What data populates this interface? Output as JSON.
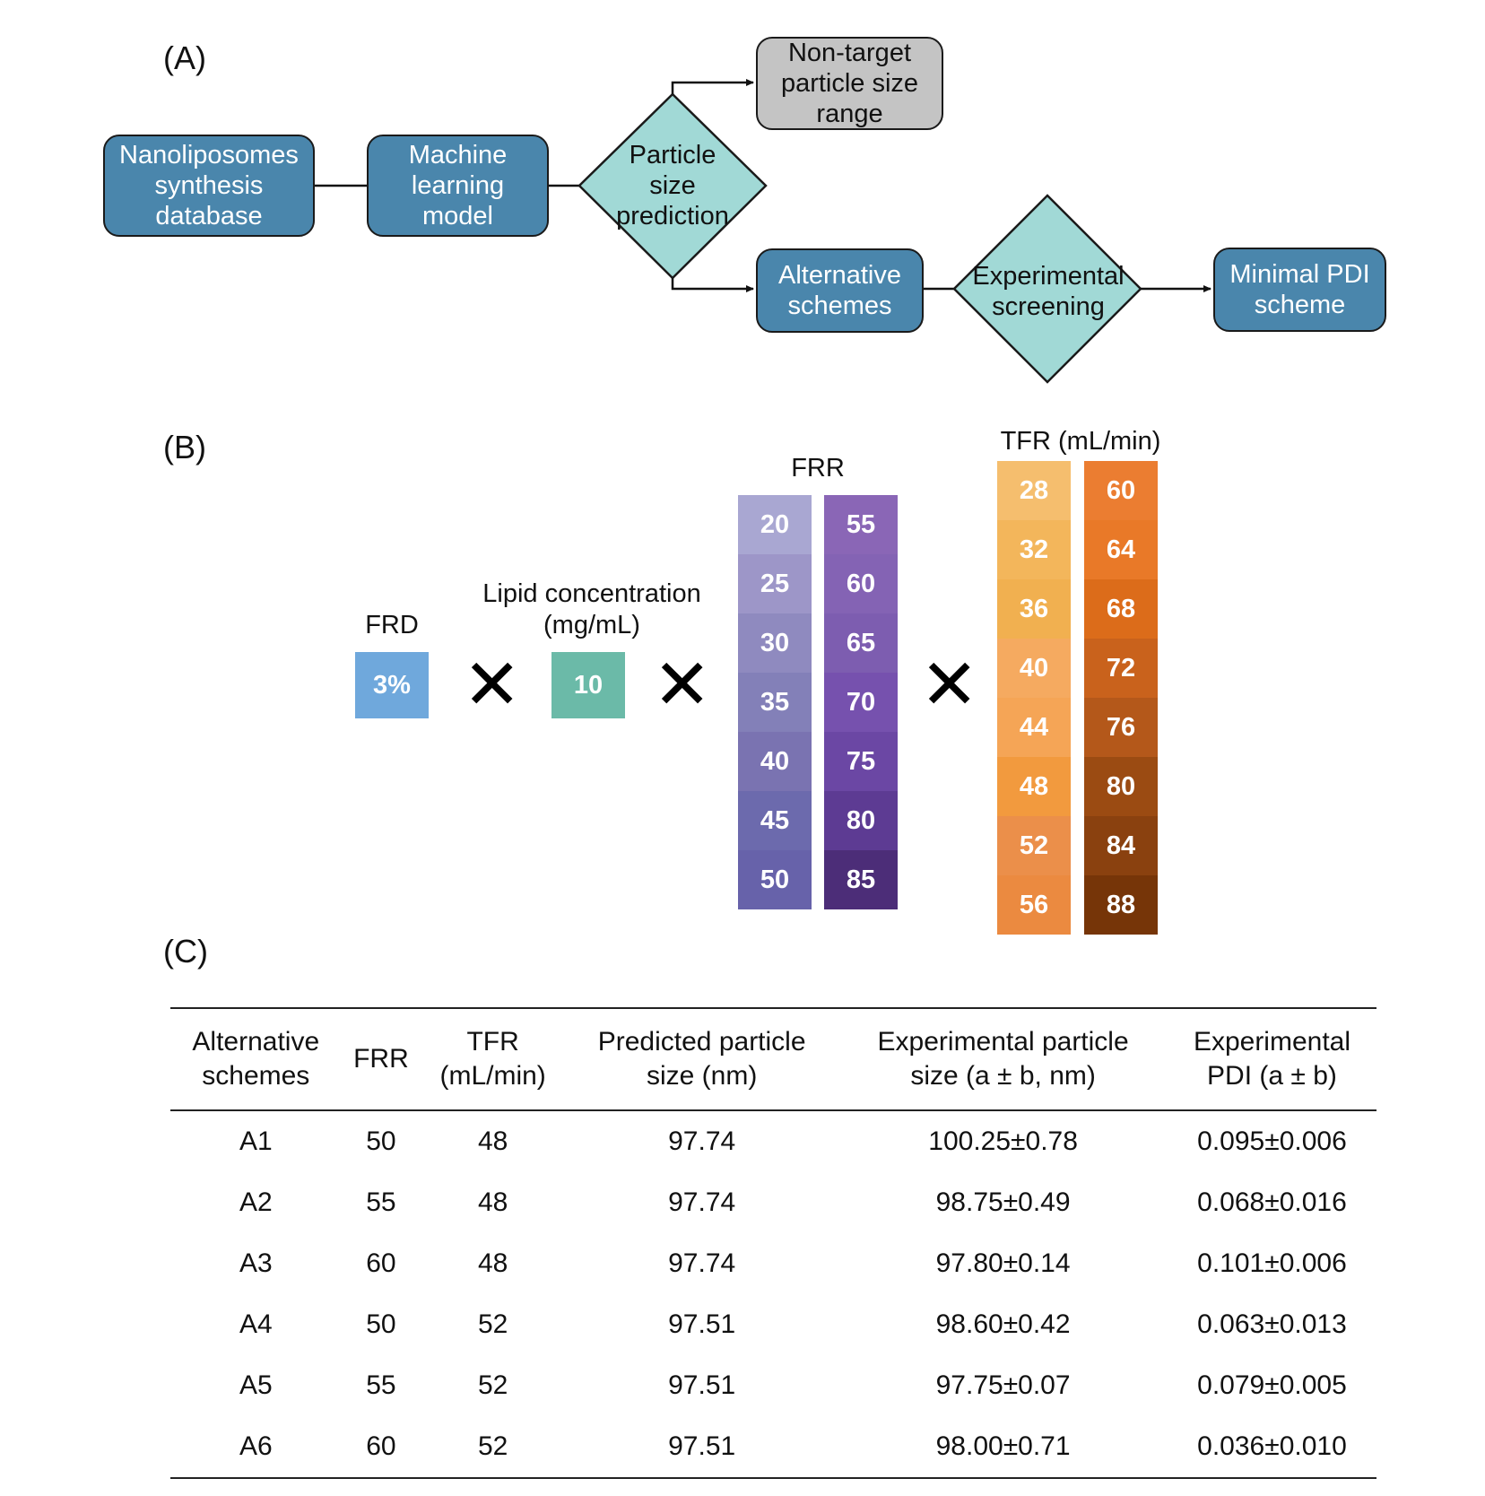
{
  "panelA": {
    "label": "(A)",
    "database": "Nanoliposomes\nsynthesis\ndatabase",
    "model": "Machine\nlearning\nmodel",
    "prediction": "Particle\nsize\nprediction",
    "nontarget": "Non-target\nparticle size\nrange",
    "alternative": "Alternative\nschemes",
    "screening": "Experimental\nscreening",
    "minimal": "Minimal PDI\nscheme"
  },
  "panelB": {
    "label": "(B)",
    "frd_title": "FRD",
    "frd_value": "3%",
    "lipid_title": "Lipid concentration\n(mg/mL)",
    "lipid_value": "10",
    "frr_title": "FRR",
    "frr_col1": [
      "20",
      "25",
      "30",
      "35",
      "40",
      "45",
      "50"
    ],
    "frr_col2": [
      "55",
      "60",
      "65",
      "70",
      "75",
      "80",
      "85"
    ],
    "tfr_title": "TFR (mL/min)",
    "tfr_col1": [
      "28",
      "32",
      "36",
      "40",
      "44",
      "48",
      "52",
      "56"
    ],
    "tfr_col2": [
      "60",
      "64",
      "68",
      "72",
      "76",
      "80",
      "84",
      "88"
    ],
    "times_symbol": "✕",
    "colors": {
      "frd": "#6fa8dc",
      "lipid": "#6bbaa8",
      "frr1": [
        "#a9a7d2",
        "#9d96c8",
        "#8f8abf",
        "#8380b8",
        "#7a73b1",
        "#6c6aad",
        "#6762aa"
      ],
      "frr2": [
        "#8a66b6",
        "#8463b4",
        "#7d5db0",
        "#7651ae",
        "#6b47a4",
        "#5d3b93",
        "#4c2d78"
      ],
      "tfr1": [
        "#f5be6e",
        "#f3b65b",
        "#f1b050",
        "#f5aa60",
        "#f5a556",
        "#f29a3e",
        "#eb8f4a",
        "#eb8a40"
      ],
      "tfr2": [
        "#eb7d31",
        "#e97928",
        "#dc6c1a",
        "#c9621c",
        "#b4581a",
        "#9b4b12",
        "#8a410f",
        "#763508"
      ]
    }
  },
  "panelC": {
    "label": "(C)",
    "headers": [
      "Alternative\nschemes",
      "FRR",
      "TFR\n(mL/min)",
      "Predicted particle\nsize (nm)",
      "Experimental particle\nsize (a ± b, nm)",
      "Experimental\nPDI (a ± b)"
    ],
    "rows": [
      [
        "A1",
        "50",
        "48",
        "97.74",
        "100.25±0.78",
        "0.095±0.006"
      ],
      [
        "A2",
        "55",
        "48",
        "97.74",
        "98.75±0.49",
        "0.068±0.016"
      ],
      [
        "A3",
        "60",
        "48",
        "97.74",
        "97.80±0.14",
        "0.101±0.006"
      ],
      [
        "A4",
        "50",
        "52",
        "97.51",
        "98.60±0.42",
        "0.063±0.013"
      ],
      [
        "A5",
        "55",
        "52",
        "97.51",
        "97.75±0.07",
        "0.079±0.005"
      ],
      [
        "A6",
        "60",
        "52",
        "97.51",
        "98.00±0.71",
        "0.036±0.010"
      ]
    ]
  }
}
